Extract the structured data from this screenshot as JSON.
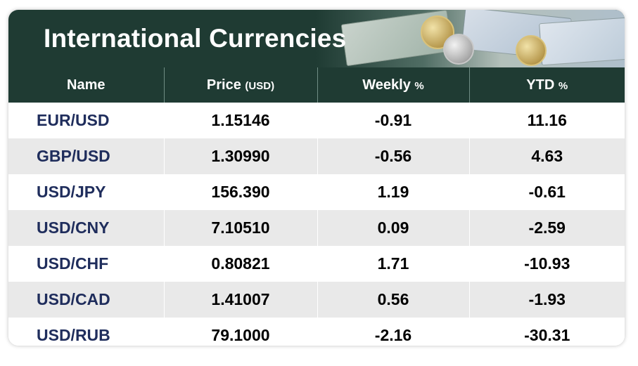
{
  "title": "International Currencies",
  "columns": {
    "name": "Name",
    "price": "Price",
    "price_unit": "(USD)",
    "weekly": "Weekly",
    "weekly_unit": "%",
    "ytd": "YTD",
    "ytd_unit": "%"
  },
  "rows": [
    {
      "name": "EUR/USD",
      "price": "1.15146",
      "weekly": "-0.91",
      "ytd": "11.16"
    },
    {
      "name": "GBP/USD",
      "price": "1.30990",
      "weekly": "-0.56",
      "ytd": "4.63"
    },
    {
      "name": "USD/JPY",
      "price": "156.390",
      "weekly": "1.19",
      "ytd": "-0.61"
    },
    {
      "name": "USD/CNY",
      "price": "7.10510",
      "weekly": "0.09",
      "ytd": "-2.59"
    },
    {
      "name": "USD/CHF",
      "price": "0.80821",
      "weekly": "1.71",
      "ytd": "-10.93"
    },
    {
      "name": "USD/CAD",
      "price": "1.41007",
      "weekly": "0.56",
      "ytd": "-1.93"
    },
    {
      "name": "USD/RUB",
      "price": "79.1000",
      "weekly": "-2.16",
      "ytd": "-30.31"
    }
  ],
  "colors": {
    "header_bg": "#1f3b33",
    "name_text": "#1f2d5c",
    "row_alt": "#e9e9e9"
  }
}
